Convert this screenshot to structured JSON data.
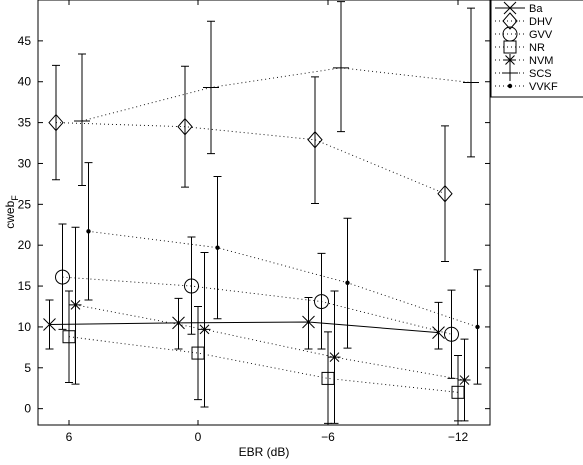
{
  "chart_data": {
    "type": "line",
    "xlabel": "EBR (dB)",
    "ylabel": "cweb",
    "ylabel_subscript": "F",
    "categories": [
      "6",
      "0",
      "−6",
      "−12"
    ],
    "ylim": [
      -2,
      50
    ],
    "yticks": [
      0,
      5,
      10,
      15,
      20,
      25,
      30,
      35,
      40,
      45
    ],
    "grid": false,
    "legend_position": "top-right",
    "series": [
      {
        "name": "Ba",
        "marker": "x",
        "line": "solid",
        "offset": -0.45,
        "values": [
          10.3,
          10.5,
          10.6,
          9.3
        ],
        "err_low": [
          7.3,
          7.3,
          7.3,
          7.3
        ],
        "err_high": [
          13.3,
          13.5,
          13.6,
          13.0
        ]
      },
      {
        "name": "DHV",
        "marker": "diamond",
        "line": "dotted",
        "offset": -0.3,
        "values": [
          35.0,
          34.5,
          32.9,
          26.3
        ],
        "err_low": [
          28.0,
          27.1,
          25.1,
          18.0
        ],
        "err_high": [
          42.0,
          41.9,
          40.6,
          34.6
        ]
      },
      {
        "name": "GVV",
        "marker": "circle",
        "line": "dotted",
        "offset": -0.15,
        "values": [
          16.1,
          15.0,
          13.1,
          9.1
        ],
        "err_low": [
          9.7,
          9.1,
          7.3,
          3.7
        ],
        "err_high": [
          22.6,
          21.0,
          19.0,
          14.5
        ]
      },
      {
        "name": "NR",
        "marker": "square",
        "line": "dotted",
        "offset": 0.0,
        "values": [
          8.8,
          6.8,
          3.7,
          2.0
        ],
        "err_low": [
          3.2,
          1.1,
          -1.8,
          -1.5
        ],
        "err_high": [
          14.4,
          12.5,
          9.4,
          6.5
        ]
      },
      {
        "name": "NVM",
        "marker": "star",
        "line": "dotted",
        "offset": 0.15,
        "values": [
          12.7,
          9.7,
          6.3,
          3.5
        ],
        "err_low": [
          3.0,
          0.2,
          -1.8,
          -1.5
        ],
        "err_high": [
          22.2,
          19.1,
          14.4,
          8.5
        ]
      },
      {
        "name": "SCS",
        "marker": "plus",
        "line": "dotted",
        "offset": 0.3,
        "values": [
          35.2,
          39.3,
          41.7,
          39.9
        ],
        "err_low": [
          27.3,
          31.2,
          33.9,
          30.8
        ],
        "err_high": [
          43.4,
          47.4,
          49.8,
          49.0
        ]
      },
      {
        "name": "VVKF",
        "marker": "dot",
        "line": "dotted",
        "offset": 0.45,
        "values": [
          21.7,
          19.7,
          15.4,
          10.0
        ],
        "err_low": [
          13.3,
          11.0,
          7.4,
          3.0
        ],
        "err_high": [
          30.1,
          28.4,
          23.3,
          17.0
        ]
      }
    ]
  }
}
